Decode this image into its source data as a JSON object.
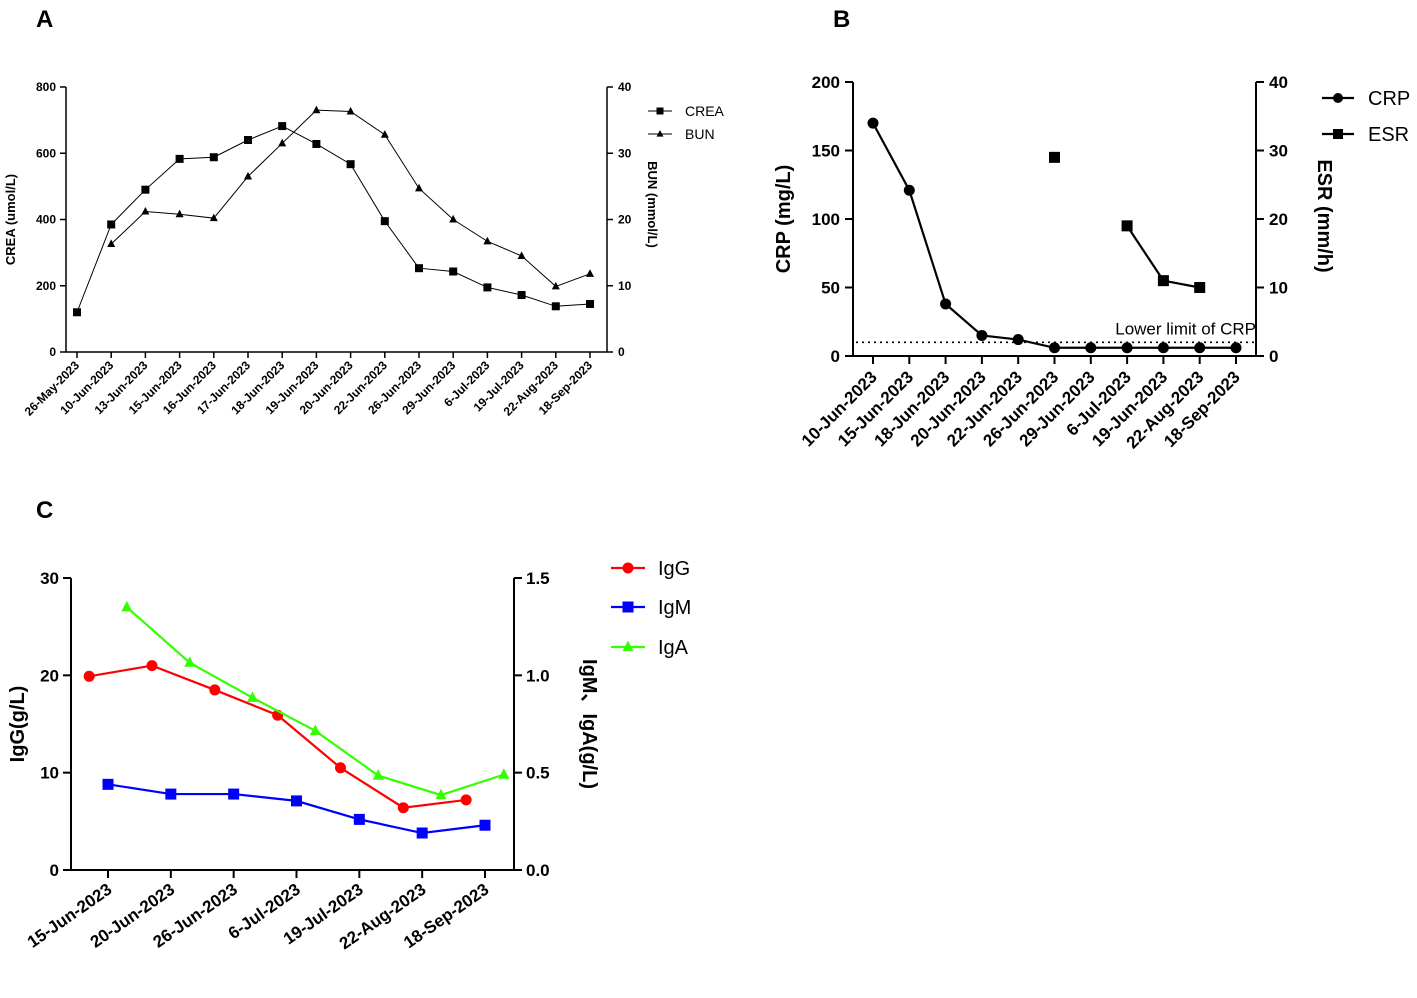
{
  "chart_data": [
    {
      "panel": "A",
      "type": "line",
      "categories": [
        "26-May-2023",
        "10-Jun-2023",
        "13-Jun-2023",
        "15-Jun-2023",
        "16-Jun-2023",
        "17-Jun-2023",
        "18-Jun-2023",
        "19-Jun-2023",
        "20-Jun-2023",
        "22-Jun-2023",
        "26-Jun-2023",
        "29-Jun-2023",
        "6-Jul-2023",
        "19-Jul-2023",
        "22-Aug-2023",
        "18-Sep-2023"
      ],
      "ylabel": "CREA  (umol/L)",
      "y2label": "BUN (mmol/L)",
      "ylim": [
        0,
        800
      ],
      "y2lim": [
        0,
        40
      ],
      "yticks": [
        0,
        200,
        400,
        600,
        800
      ],
      "y2ticks": [
        0,
        10,
        20,
        30,
        40
      ],
      "series": [
        {
          "name": "CREA",
          "axis": "left",
          "marker": "square",
          "values": [
            120,
            385,
            490,
            583,
            588,
            640,
            682,
            628,
            567,
            395,
            253,
            243,
            195,
            172,
            138,
            145
          ]
        },
        {
          "name": "BUN",
          "axis": "right",
          "marker": "triangle",
          "values": [
            null,
            16.3,
            21.2,
            20.8,
            20.2,
            26.5,
            31.5,
            36.5,
            36.3,
            32.8,
            24.7,
            20.0,
            16.7,
            14.5,
            9.9,
            11.8
          ]
        }
      ]
    },
    {
      "panel": "B",
      "type": "line",
      "categories": [
        "10-Jun-2023",
        "15-Jun-2023",
        "18-Jun-2023",
        "20-Jun-2023",
        "22-Jun-2023",
        "26-Jun-2023",
        "29-Jun-2023",
        "6-Jul-2023",
        "19-Jun-2023",
        "22-Aug-2023",
        "18-Sep-2023"
      ],
      "ylabel": "CRP (mg/L)",
      "y2label": "ESR (mm/h)",
      "ylim": [
        0,
        200
      ],
      "y2lim": [
        0,
        40
      ],
      "yticks": [
        0,
        50,
        100,
        150,
        200
      ],
      "y2ticks": [
        0,
        10,
        20,
        30,
        40
      ],
      "reference_line": {
        "value": 10,
        "label": "Lower limit of CRP"
      },
      "series": [
        {
          "name": "CRP",
          "axis": "left",
          "marker": "circle",
          "values": [
            170,
            121,
            38,
            15,
            12,
            6,
            6,
            6,
            6,
            6,
            6
          ]
        },
        {
          "name": "ESR",
          "axis": "right",
          "marker": "square",
          "values": [
            null,
            null,
            null,
            null,
            null,
            29,
            null,
            19,
            11,
            10,
            null
          ]
        }
      ]
    },
    {
      "panel": "C",
      "type": "line",
      "categories": [
        "15-Jun-2023",
        "20-Jun-2023",
        "26-Jun-2023",
        "6-Jul-2023",
        "19-Jul-2023",
        "22-Aug-2023",
        "18-Sep-2023"
      ],
      "ylabel": "IgG(g/L)",
      "y2label": "IgM、IgA(g/L)",
      "ylim": [
        0,
        30
      ],
      "y2lim": [
        0,
        1.5
      ],
      "yticks": [
        "0",
        "10",
        "20",
        "30"
      ],
      "y2ticks": [
        "0.0",
        "0.5",
        "1.0",
        "1.5"
      ],
      "series": [
        {
          "name": "IgG",
          "axis": "left",
          "color": "#ff0000",
          "marker": "circle",
          "offset": -0.3,
          "values": [
            19.9,
            21.0,
            18.5,
            15.9,
            10.5,
            6.4,
            7.2
          ]
        },
        {
          "name": "IgM",
          "axis": "right",
          "color": "#0000ff",
          "marker": "square",
          "offset": 0.0,
          "values": [
            0.44,
            0.39,
            0.39,
            0.355,
            0.26,
            0.19,
            0.23
          ]
        },
        {
          "name": "IgA",
          "axis": "right",
          "color": "#33ff00",
          "marker": "triangle",
          "offset": 0.3,
          "values": [
            1.35,
            1.065,
            0.885,
            0.715,
            0.485,
            0.385,
            0.49
          ]
        }
      ]
    }
  ],
  "panels": {
    "a": "A",
    "b": "B",
    "c": "C"
  }
}
